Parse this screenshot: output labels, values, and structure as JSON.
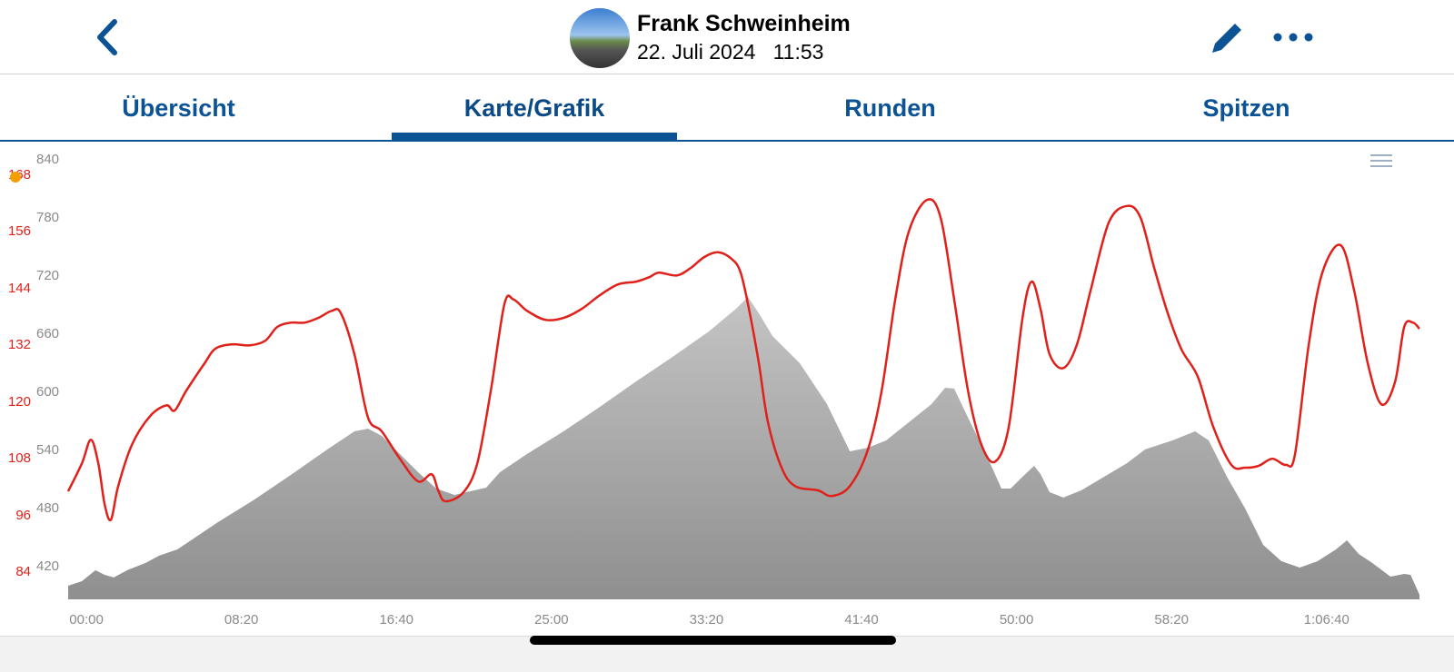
{
  "header": {
    "name": "Frank Schweinheim",
    "date": "22. Juli 2024",
    "time": "11:53",
    "datetime": "22. Juli 2024   11:53"
  },
  "tabs": [
    {
      "label": "Übersicht"
    },
    {
      "label": "Karte/Grafik",
      "active": true
    },
    {
      "label": "Runden"
    },
    {
      "label": "Spitzen"
    }
  ],
  "colors": {
    "accent": "#0b5394",
    "hr": "#e0201a",
    "elevation": "#9a9a9a",
    "marker": "#f5a000"
  },
  "chart_data": {
    "type": "line",
    "xlabel": "time",
    "x_unit": "minutes",
    "x_ticks": [
      "00:00",
      "08:20",
      "16:40",
      "25:00",
      "33:20",
      "41:40",
      "50:00",
      "58:20",
      "1:06:40"
    ],
    "x_tick_values": [
      0,
      8.333,
      16.667,
      25,
      33.333,
      41.667,
      50,
      58.333,
      66.667
    ],
    "xlim": [
      -0.98,
      71.66
    ],
    "y_left_hr_ticks": [
      "84",
      "96",
      "108",
      "120",
      "132",
      "144",
      "156",
      "168"
    ],
    "y_left_elev_ticks": [
      "420",
      "480",
      "540",
      "600",
      "660",
      "720",
      "780",
      "840"
    ],
    "hr_lim": [
      84,
      168
    ],
    "elev_lim": [
      420,
      840
    ],
    "series": [
      {
        "name": "heart-rate",
        "unit": "bpm",
        "type": "line",
        "x": [
          -0.98,
          -0.24,
          0.24,
          0.64,
          0.98,
          1.32,
          1.71,
          2.44,
          3.42,
          4.3,
          4.74,
          5.37,
          6.35,
          6.94,
          7.82,
          8.79,
          9.62,
          10.26,
          10.99,
          11.72,
          12.46,
          13.19,
          13.68,
          14.41,
          15.14,
          15.88,
          16.85,
          17.83,
          18.56,
          18.91,
          19.3,
          20.27,
          21.01,
          21.74,
          22.47,
          22.96,
          23.69,
          24.67,
          25.65,
          26.62,
          27.6,
          28.58,
          29.56,
          30.29,
          30.78,
          31.75,
          32.49,
          33.22,
          33.95,
          34.68,
          35.17,
          35.66,
          36.15,
          36.64,
          37.37,
          38.1,
          39.33,
          40.06,
          41.04,
          42.01,
          42.75,
          43.48,
          44.21,
          45.19,
          45.92,
          46.65,
          47.39,
          48.12,
          48.85,
          49.58,
          50.32,
          50.81,
          51.29,
          51.78,
          52.52,
          53.25,
          53.98,
          54.96,
          55.94,
          56.67,
          57.4,
          58.13,
          58.87,
          59.75,
          60.58,
          61.55,
          62.29,
          63.02,
          63.75,
          64.48,
          64.97,
          65.71,
          66.44,
          67.42,
          68.15,
          68.88,
          69.62,
          70.35,
          70.84,
          71.32,
          71.66
        ],
        "values": [
          101.1,
          107,
          112,
          107,
          98.4,
          95.1,
          102.2,
          110.9,
          117,
          119.3,
          118.2,
          122.4,
          128.2,
          131.3,
          132.2,
          132,
          133,
          135.9,
          136.8,
          136.8,
          137.8,
          139.3,
          138.8,
          130.1,
          116.7,
          113.8,
          108,
          103.2,
          104.7,
          101.3,
          99,
          100.9,
          107,
          122.4,
          140.7,
          141.7,
          139.3,
          137.4,
          137.8,
          139.7,
          142.6,
          144.9,
          145.5,
          146.5,
          147.4,
          146.8,
          148.4,
          150.7,
          151.7,
          150.3,
          147.4,
          138.8,
          128.2,
          115.7,
          106.1,
          102.2,
          101.3,
          100.1,
          102.2,
          109.9,
          122.4,
          141.7,
          156.1,
          162.8,
          159,
          141.7,
          122.4,
          110.9,
          107.4,
          114.7,
          137.8,
          145.5,
          139.7,
          130.1,
          127.2,
          132.2,
          143.6,
          158,
          161.5,
          159,
          148.4,
          138.8,
          131.1,
          125.3,
          114.7,
          106.7,
          106.1,
          106.5,
          108,
          106.7,
          109,
          132.2,
          147.4,
          153.2,
          143.6,
          128.2,
          119.5,
          124.3,
          135.9,
          136.8,
          135.5
        ]
      },
      {
        "name": "elevation",
        "unit": "m",
        "type": "area",
        "x": [
          -0.98,
          -0.24,
          0.49,
          0.98,
          1.47,
          2.2,
          3.18,
          3.91,
          4.89,
          5.62,
          7.08,
          9.04,
          10.99,
          12.95,
          14.41,
          15.14,
          15.88,
          16.85,
          17.83,
          18.81,
          19.78,
          21.49,
          22.23,
          23.69,
          25.65,
          27.6,
          29.56,
          31.51,
          33.46,
          34.93,
          35.56,
          36.15,
          36.88,
          38.35,
          39.81,
          41.04,
          42.01,
          42.99,
          44.21,
          45.43,
          46.16,
          46.65,
          47.39,
          48.36,
          49.19,
          49.68,
          50.32,
          50.95,
          51.29,
          51.78,
          52.52,
          53.49,
          54.71,
          55.94,
          56.91,
          58.38,
          59.6,
          60.33,
          61.31,
          62.29,
          63.26,
          64.24,
          65.22,
          66.18,
          67.17,
          67.76,
          68.39,
          69.12,
          70.1,
          70.84,
          71.18,
          71.66
        ],
        "values": [
          400.3,
          405,
          416.3,
          411.6,
          408.8,
          416.3,
          423.8,
          431.3,
          437.8,
          447.2,
          466,
          489.4,
          514.7,
          541,
          559.7,
          562.5,
          555,
          536.3,
          517.5,
          500.6,
          494.1,
          501.6,
          517.5,
          536.3,
          559.7,
          585,
          611.3,
          636.6,
          662.8,
          686.3,
          698.4,
          681.6,
          658.1,
          630,
          587.8,
          539.1,
          542.8,
          550.3,
          569.1,
          587.8,
          604.7,
          603.8,
          573.8,
          536.3,
          500.6,
          500.6,
          512.8,
          524.1,
          515.6,
          496.9,
          491.3,
          498.8,
          512.8,
          526.9,
          541,
          550.3,
          559.7,
          550.3,
          512.8,
          480,
          442.5,
          425.6,
          419.1,
          425.6,
          437.8,
          447.2,
          433.1,
          423.8,
          409.7,
          412.5,
          411.6,
          391
        ]
      }
    ]
  }
}
